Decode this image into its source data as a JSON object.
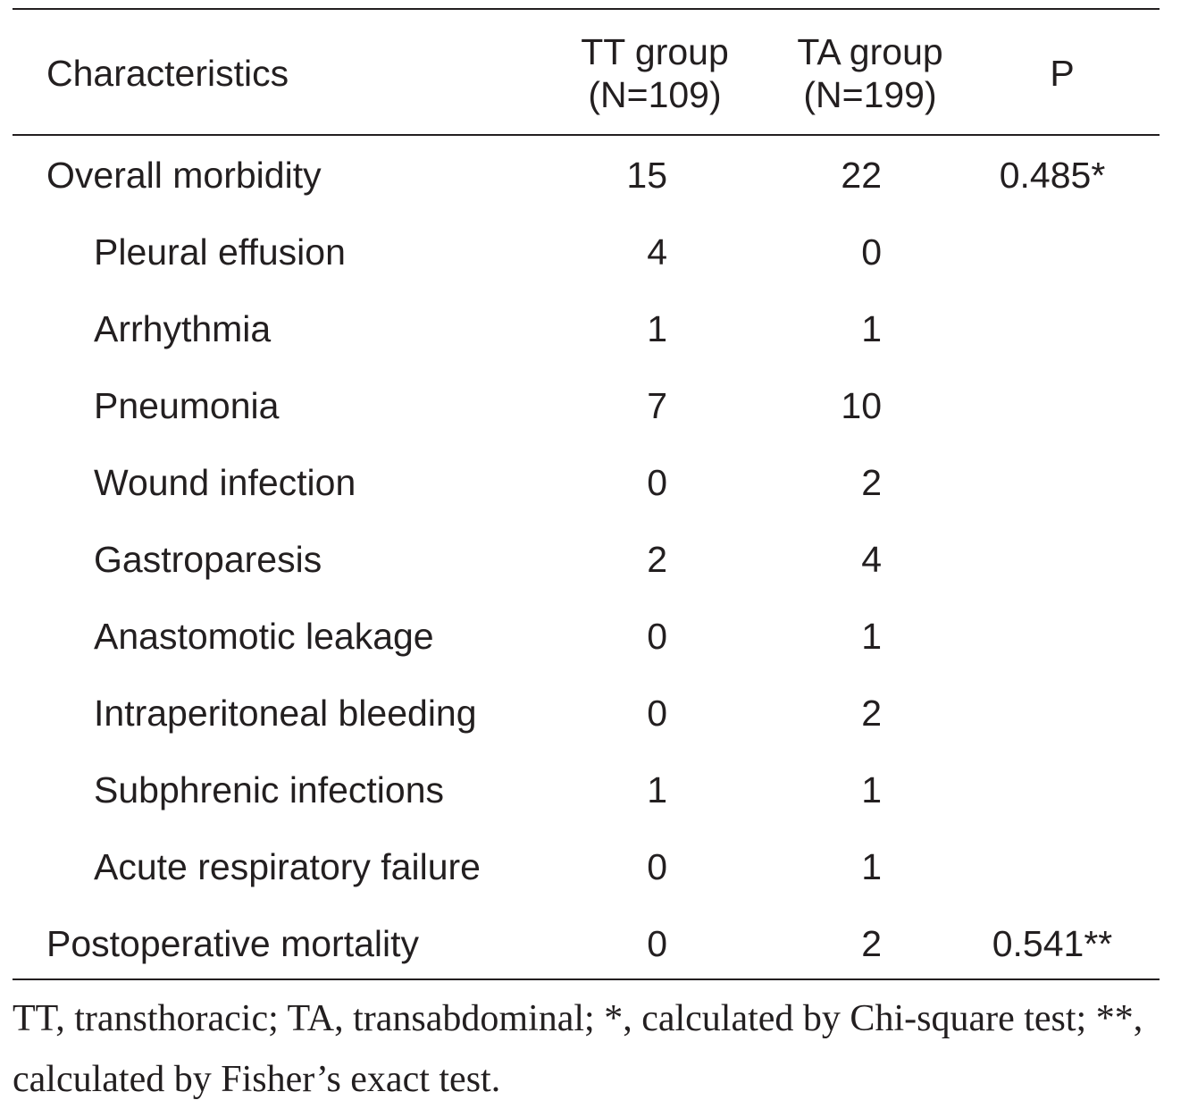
{
  "table": {
    "header": {
      "characteristics": "Characteristics",
      "tt_line1": "TT group",
      "tt_line2": "(N=109)",
      "ta_line1": "TA group",
      "ta_line2": "(N=199)",
      "p": "P"
    },
    "rows": [
      {
        "name": "Overall morbidity",
        "tt": "15",
        "ta": "22",
        "p": "0.485*"
      },
      {
        "name": "Pleural effusion",
        "tt": "4",
        "ta": "0",
        "p": ""
      },
      {
        "name": "Arrhythmia",
        "tt": "1",
        "ta": "1",
        "p": ""
      },
      {
        "name": "Pneumonia",
        "tt": "7",
        "ta": "10",
        "p": ""
      },
      {
        "name": "Wound infection",
        "tt": "0",
        "ta": "2",
        "p": ""
      },
      {
        "name": "Gastroparesis",
        "tt": "2",
        "ta": "4",
        "p": ""
      },
      {
        "name": "Anastomotic leakage",
        "tt": "0",
        "ta": "1",
        "p": ""
      },
      {
        "name": "Intraperitoneal bleeding",
        "tt": "0",
        "ta": "2",
        "p": ""
      },
      {
        "name": "Subphrenic infections",
        "tt": "1",
        "ta": "1",
        "p": ""
      },
      {
        "name": "Acute respiratory failure",
        "tt": "0",
        "ta": "1",
        "p": ""
      },
      {
        "name": "Postoperative mortality",
        "tt": "0",
        "ta": "2",
        "p": "0.541**"
      }
    ]
  },
  "footnote": "TT, transthoracic; TA, transabdominal; *, calculated by Chi-square test; **, calculated by Fisher’s exact test."
}
